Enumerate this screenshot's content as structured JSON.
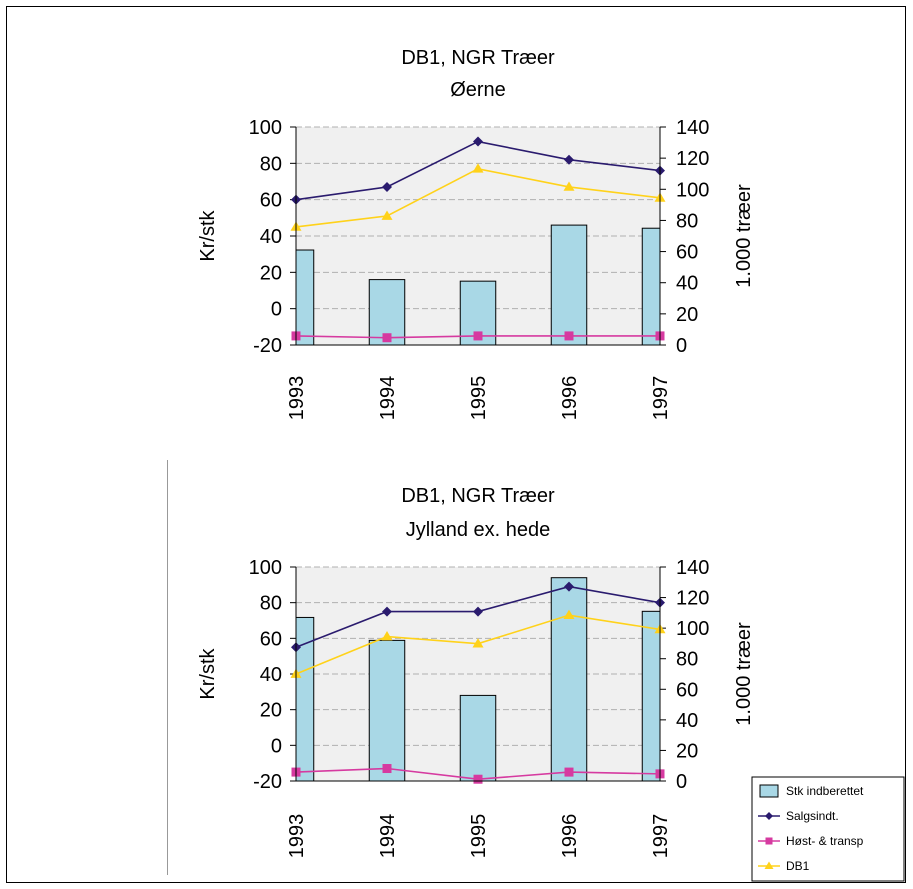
{
  "colors": {
    "bars": "#a9d8e6",
    "bar_stroke": "#000000",
    "salgsindt": "#2a1b6e",
    "host_transp": "#d63aa0",
    "db1": "#ffd21a",
    "plot_bg": "#f0f0f0",
    "grid": "#b0b0b0"
  },
  "legend": {
    "items": [
      {
        "label": "Stk indberettet",
        "kind": "bar",
        "color_key": "bars"
      },
      {
        "label": "Salgsindt.",
        "kind": "line",
        "color_key": "salgsindt"
      },
      {
        "label": "Høst- & transp",
        "kind": "line",
        "color_key": "host_transp"
      },
      {
        "label": "DB1",
        "kind": "line",
        "color_key": "db1"
      }
    ]
  },
  "chart_data": [
    {
      "type": "bar",
      "title": "DB1, NGR Træer",
      "subtitle": "Øerne",
      "ylabel": "Kr/stk",
      "y2label": "1.000 træer",
      "categories": [
        "1993",
        "1994",
        "1995",
        "1996",
        "1997"
      ],
      "ylim": [
        -20,
        100
      ],
      "y_ticks": [
        "100",
        "80",
        "60",
        "40",
        "20",
        "0",
        "-20"
      ],
      "y2lim": [
        0,
        140
      ],
      "y2_ticks": [
        "140",
        "120",
        "100",
        "80",
        "60",
        "40",
        "20",
        "0"
      ],
      "grid": true,
      "series": [
        {
          "name": "Stk indberettet",
          "kind": "bar",
          "axis": "right",
          "values": [
            61,
            42,
            41,
            77,
            75
          ]
        },
        {
          "name": "Salgsindt.",
          "kind": "line",
          "axis": "left",
          "values": [
            60,
            67,
            92,
            82,
            76
          ]
        },
        {
          "name": "Høst- & transp",
          "kind": "line",
          "axis": "left",
          "values": [
            -15,
            -16,
            -15,
            -15,
            -15
          ]
        },
        {
          "name": "DB1",
          "kind": "line",
          "axis": "left",
          "values": [
            45,
            51,
            77,
            67,
            61
          ]
        }
      ]
    },
    {
      "type": "bar",
      "title": "DB1, NGR Træer",
      "subtitle": "Jylland ex. hede",
      "ylabel": "Kr/stk",
      "y2label": "1.000 træer",
      "categories": [
        "1993",
        "1994",
        "1995",
        "1996",
        "1997"
      ],
      "ylim": [
        -20,
        100
      ],
      "y_ticks": [
        "100",
        "80",
        "60",
        "40",
        "20",
        "0",
        "-20"
      ],
      "y2lim": [
        0,
        140
      ],
      "y2_ticks": [
        "140",
        "120",
        "100",
        "80",
        "60",
        "40",
        "20",
        "0"
      ],
      "grid": true,
      "series": [
        {
          "name": "Stk indberettet",
          "kind": "bar",
          "axis": "right",
          "values": [
            107,
            92,
            56,
            133,
            111
          ]
        },
        {
          "name": "Salgsindt.",
          "kind": "line",
          "axis": "left",
          "values": [
            55,
            75,
            75,
            89,
            80
          ]
        },
        {
          "name": "Høst- & transp",
          "kind": "line",
          "axis": "left",
          "values": [
            -15,
            -13,
            -19,
            -15,
            -16
          ]
        },
        {
          "name": "DB1",
          "kind": "line",
          "axis": "left",
          "values": [
            40,
            61,
            57,
            73,
            65
          ]
        }
      ]
    }
  ]
}
